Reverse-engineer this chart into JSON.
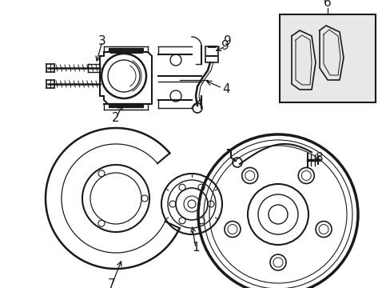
{
  "bg_color": "#ffffff",
  "line_color": "#1a1a1a",
  "fig_width": 4.89,
  "fig_height": 3.6,
  "dpi": 100,
  "shade_color": "#e8e8e8"
}
